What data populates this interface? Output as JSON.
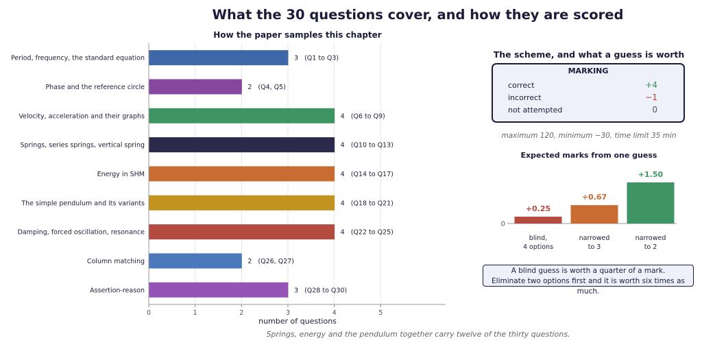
{
  "title": "What the 30 questions cover, and how they are scored",
  "footnote": "Springs, energy and the pendulum together carry twelve of the thirty questions.",
  "chart_data": [
    {
      "type": "bar",
      "orientation": "horizontal",
      "title": "How the paper samples this chapter",
      "xlabel": "number of questions",
      "xlim": [
        0,
        6.4
      ],
      "xticks": [
        0,
        1,
        2,
        3,
        4,
        5
      ],
      "grid": "vertical",
      "categories": [
        "Period, frequency, the standard equation",
        "Phase and the reference circle",
        "Velocity, acceleration and their graphs",
        "Springs, series springs, vertical spring",
        "Energy in SHM",
        "The simple pendulum and its variants",
        "Damping, forced oscillation, resonance",
        "Column matching",
        "Assertion-reason"
      ],
      "values": [
        3,
        2,
        4,
        4,
        4,
        4,
        4,
        2,
        3
      ],
      "labels": [
        "3   (Q1 to Q3)",
        "2   (Q4, Q5)",
        "4   (Q6 to Q9)",
        "4   (Q10 to Q13)",
        "4   (Q14 to Q17)",
        "4   (Q18 to Q21)",
        "4   (Q22 to Q25)",
        "2   (Q26, Q27)",
        "3   (Q28 to Q30)"
      ],
      "colors": [
        "#3d67a6",
        "#86489f",
        "#3f9463",
        "#2b2a4c",
        "#c86c31",
        "#c39320",
        "#b44b40",
        "#4c78bc",
        "#9554b5"
      ]
    },
    {
      "type": "bar",
      "orientation": "vertical",
      "title": "Expected marks from one guess",
      "categories": [
        "blind,\n4 options",
        "narrowed\nto 3",
        "narrowed\nto 2"
      ],
      "values": [
        0.25,
        0.67,
        1.5
      ],
      "labels": [
        "+0.25",
        "+0.67",
        "+1.50"
      ],
      "ylim": [
        0,
        1.5
      ],
      "yticks": [
        0
      ],
      "colors": [
        "#b44b40",
        "#c86c31",
        "#3f9463"
      ]
    }
  ],
  "scheme": {
    "title": "The scheme, and what a guess is worth",
    "box_title": "MARKING",
    "rows": [
      {
        "label": "correct",
        "value": "+4",
        "color": "#2f8f4e"
      },
      {
        "label": "incorrect",
        "value": "−1",
        "color": "#c0392b"
      },
      {
        "label": "not attempted",
        "value": "0",
        "color": "#555555"
      }
    ],
    "limits": "maximum 120,   minimum −30,   time limit 35 min"
  },
  "note": {
    "line1": "A blind guess is worth a quarter of a mark.",
    "line2": "Eliminate two options first and it is worth six times as much."
  }
}
